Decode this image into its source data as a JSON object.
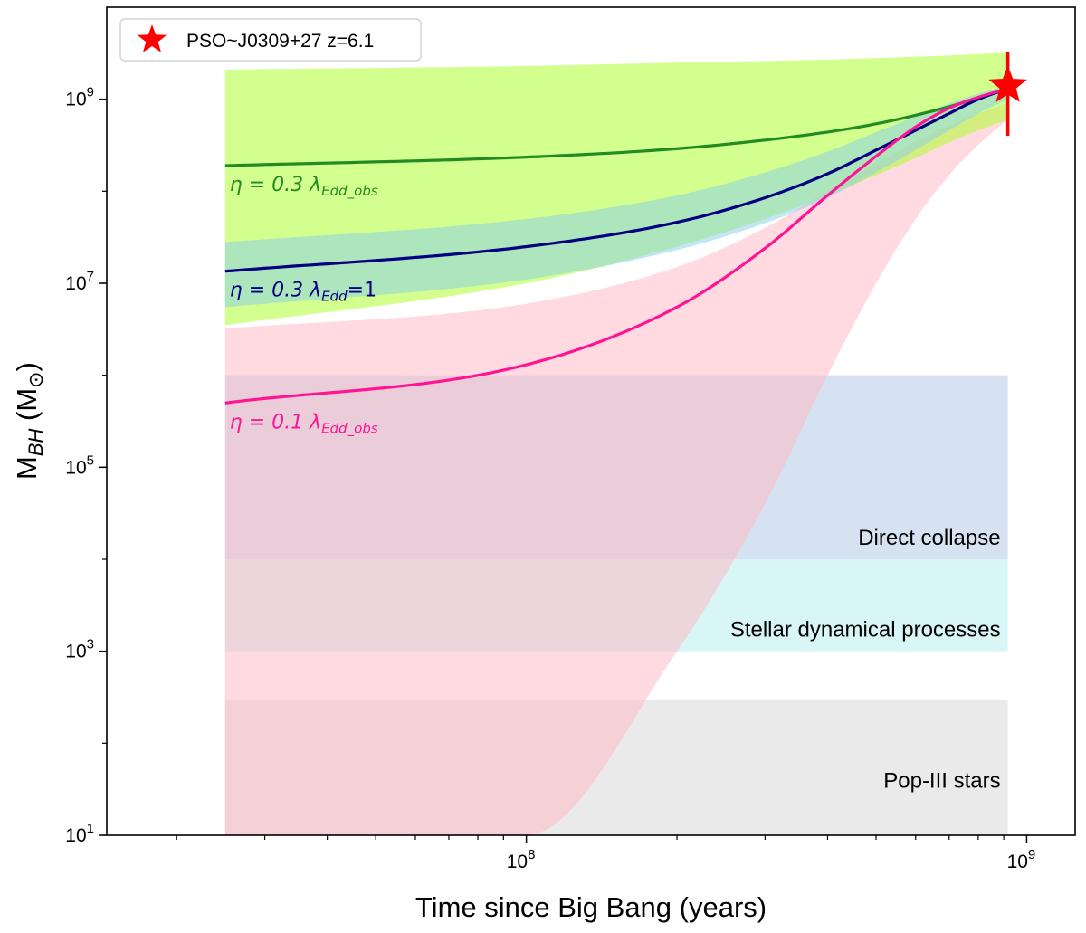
{
  "chart_data": {
    "type": "line",
    "xlabel": "Time since Big Bang (years)",
    "ylabel_main": "M",
    "ylabel_sub": "BH",
    "ylabel_unit_open": " (M",
    "ylabel_unit_sym": "⊙",
    "ylabel_unit_close": ")",
    "xscale": "log",
    "yscale": "log",
    "xlim": [
      14500000,
      1250000000
    ],
    "ylim": [
      10,
      10000000000
    ],
    "grid": false,
    "legend_position": "upper-left",
    "x_major_ticks": [
      {
        "value": 100000000,
        "base": "10",
        "exp": "8"
      },
      {
        "value": 1000000000,
        "base": "10",
        "exp": "9"
      }
    ],
    "y_major_ticks": [
      {
        "value": 10,
        "base": "10",
        "exp": "1"
      },
      {
        "value": 1000,
        "base": "10",
        "exp": "3"
      },
      {
        "value": 100000,
        "base": "10",
        "exp": "5"
      },
      {
        "value": 10000000,
        "base": "10",
        "exp": "7"
      },
      {
        "value": 1000000000,
        "base": "10",
        "exp": "9"
      }
    ],
    "seed_regions": [
      {
        "label": "Pop-III stars",
        "y_range": [
          10,
          300
        ],
        "x_range": [
          25000000,
          917000000
        ],
        "color": "#d0d0d0"
      },
      {
        "label": "Stellar dynamical processes",
        "y_range": [
          1000,
          10000
        ],
        "x_range": [
          25000000,
          917000000
        ],
        "color": "#a8ece8"
      },
      {
        "label": "Direct collapse",
        "y_range": [
          10000,
          1000000
        ],
        "x_range": [
          25000000,
          917000000
        ],
        "color": "#a3bfe0"
      }
    ],
    "series": [
      {
        "label_symbol": "η = 0.3 λ",
        "label_sub": "Edd_obs",
        "label_tail": "",
        "color": "#228b22",
        "band_color": "#adff2f",
        "x": [
          25000000,
          100000000,
          200000000,
          300000000,
          400000000,
          500000000,
          600000000,
          700000000,
          800000000,
          917000000
        ],
        "y": [
          190000000,
          235000000,
          290000000,
          360000000,
          440000000,
          540000000,
          670000000,
          830000000,
          1030000000,
          1300000000
        ],
        "band_upper": [
          2100000000,
          2300000000,
          2500000000,
          2600000000,
          2700000000,
          2800000000,
          2900000000,
          3000000000,
          3100000000,
          3200000000
        ],
        "band_lower": [
          3500000,
          10000000,
          25000000,
          50000000,
          90000000,
          150000000,
          230000000,
          340000000,
          460000000,
          600000000
        ]
      },
      {
        "label_symbol": "η = 0.3 λ",
        "label_sub": "Edd",
        "label_tail": "=1",
        "color": "#000080",
        "band_color": "#87ceeb",
        "x": [
          25000000,
          100000000,
          200000000,
          300000000,
          400000000,
          500000000,
          600000000,
          700000000,
          800000000,
          917000000
        ],
        "y": [
          13500000,
          25000000,
          46000000,
          85000000,
          155000000,
          280000000,
          460000000,
          700000000,
          1000000000,
          1300000000
        ],
        "band_upper": [
          28000000,
          50000000,
          90000000,
          160000000,
          270000000,
          440000000,
          650000000,
          900000000,
          1150000000,
          1400000000
        ],
        "band_lower": [
          5500000,
          11000000,
          23000000,
          45000000,
          85000000,
          160000000,
          280000000,
          460000000,
          700000000,
          1000000000
        ]
      },
      {
        "label_symbol": "η = 0.1 λ",
        "label_sub": "Edd_obs",
        "label_tail": "",
        "color": "#ff1493",
        "band_color": "#ffb6c1",
        "x": [
          25000000,
          100000000,
          200000000,
          300000000,
          400000000,
          500000000,
          600000000,
          700000000,
          800000000,
          917000000
        ],
        "y": [
          500000,
          1300000,
          5500000,
          24000000,
          90000000,
          240000000,
          500000000,
          800000000,
          1050000000,
          1300000000
        ],
        "band_upper": [
          3200000,
          6000000,
          15000000,
          40000000,
          100000000,
          200000000,
          350000000,
          520000000,
          700000000,
          900000000
        ],
        "band_lower": [
          10,
          10,
          1000,
          40000,
          1000000,
          10000000,
          50000000,
          150000000,
          320000000,
          600000000
        ]
      }
    ],
    "points": [
      {
        "label": "PSO~J0309+27 z=6.1",
        "x": 917000000,
        "y": 1400000000,
        "yerr_low": 400000000,
        "yerr_high": 3300000000,
        "color": "#ff0000",
        "marker": "star"
      }
    ]
  }
}
